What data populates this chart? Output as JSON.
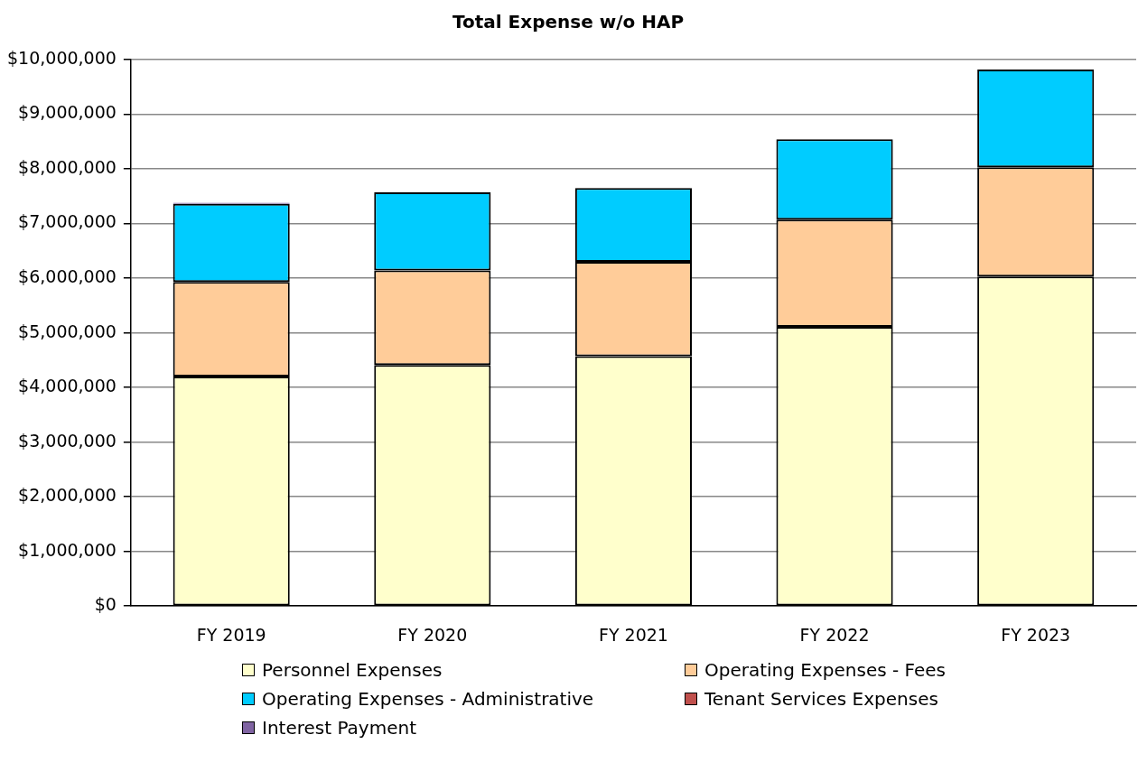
{
  "chart_data": {
    "type": "bar",
    "title": "Total Expense w/o HAP",
    "stacked": true,
    "categories": [
      "FY 2019",
      "FY 2020",
      "FY 2021",
      "FY 2022",
      "FY 2023"
    ],
    "series": [
      {
        "name": "Personnel Expenses",
        "color": "#ffffcc",
        "values": [
          4200000,
          4410000,
          4570000,
          5110000,
          6030000
        ]
      },
      {
        "name": "Operating Expenses - Fees",
        "color": "#ffcc99",
        "values": [
          1730000,
          1730000,
          1730000,
          1960000,
          2000000
        ]
      },
      {
        "name": "Operating Expenses - Administrative",
        "color": "#00ccff",
        "values": [
          1430000,
          1430000,
          1350000,
          1470000,
          1790000
        ]
      },
      {
        "name": "Tenant Services Expenses",
        "color": "#c0504d",
        "values": [
          null,
          0,
          0,
          0,
          0
        ]
      },
      {
        "name": "Interest Payment",
        "color": "#8064a2",
        "values": [
          20000,
          0,
          0,
          0,
          0
        ]
      }
    ],
    "ylim": [
      0,
      10000000
    ],
    "yticks": [
      {
        "value": 0,
        "label": "$0"
      },
      {
        "value": 1000000,
        "label": "$1,000,000"
      },
      {
        "value": 2000000,
        "label": "$2,000,000"
      },
      {
        "value": 3000000,
        "label": "$3,000,000"
      },
      {
        "value": 4000000,
        "label": "$4,000,000"
      },
      {
        "value": 5000000,
        "label": "$5,000,000"
      },
      {
        "value": 6000000,
        "label": "$6,000,000"
      },
      {
        "value": 7000000,
        "label": "$7,000,000"
      },
      {
        "value": 8000000,
        "label": "$8,000,000"
      },
      {
        "value": 9000000,
        "label": "$9,000,000"
      },
      {
        "value": 10000000,
        "label": "$10,000,000"
      }
    ],
    "grid": "y",
    "legend": "bottom"
  }
}
